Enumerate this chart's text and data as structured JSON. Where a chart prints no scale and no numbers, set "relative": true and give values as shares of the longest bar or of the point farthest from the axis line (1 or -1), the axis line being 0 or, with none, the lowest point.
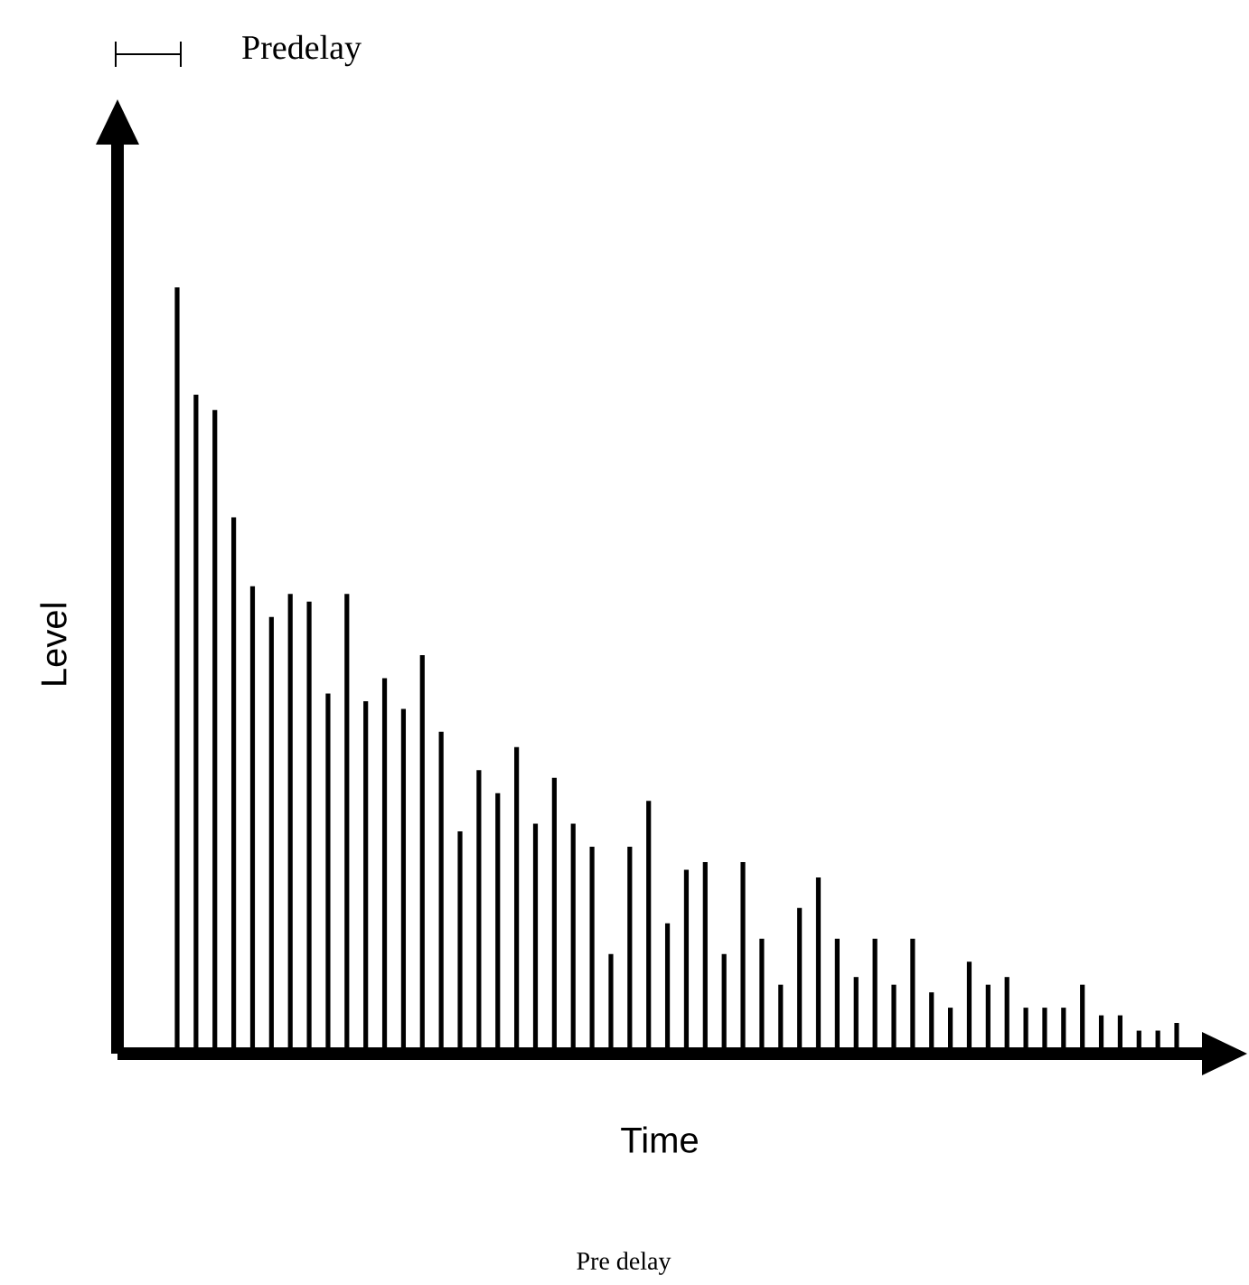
{
  "chart_data": {
    "type": "bar",
    "relative": true,
    "xlabel": "Time",
    "ylabel": "Level",
    "color": "#000000",
    "annotations": [
      "Predelay",
      "Pre delay"
    ],
    "categories": [
      null,
      null,
      null,
      null,
      null,
      null,
      null,
      null,
      null,
      null,
      null,
      null,
      null,
      null,
      null,
      null,
      null,
      null,
      null,
      null,
      null,
      null,
      null,
      null,
      null,
      null,
      null,
      null,
      null,
      null,
      null,
      null,
      null,
      null,
      null,
      null,
      null,
      null,
      null,
      null,
      null,
      null,
      null,
      null,
      null,
      null,
      null,
      null,
      null,
      null,
      null,
      null,
      null,
      null
    ],
    "values": [
      1.0,
      0.86,
      0.84,
      0.7,
      0.61,
      0.57,
      0.6,
      0.59,
      0.47,
      0.6,
      0.46,
      0.49,
      0.45,
      0.52,
      0.42,
      0.29,
      0.37,
      0.34,
      0.4,
      0.3,
      0.36,
      0.3,
      0.27,
      0.13,
      0.27,
      0.33,
      0.17,
      0.24,
      0.25,
      0.13,
      0.25,
      0.15,
      0.09,
      0.19,
      0.23,
      0.15,
      0.1,
      0.15,
      0.09,
      0.15,
      0.08,
      0.06,
      0.12,
      0.09,
      0.1,
      0.06,
      0.06,
      0.06,
      0.09,
      0.05,
      0.05,
      0.03,
      0.03,
      0.04
    ]
  }
}
